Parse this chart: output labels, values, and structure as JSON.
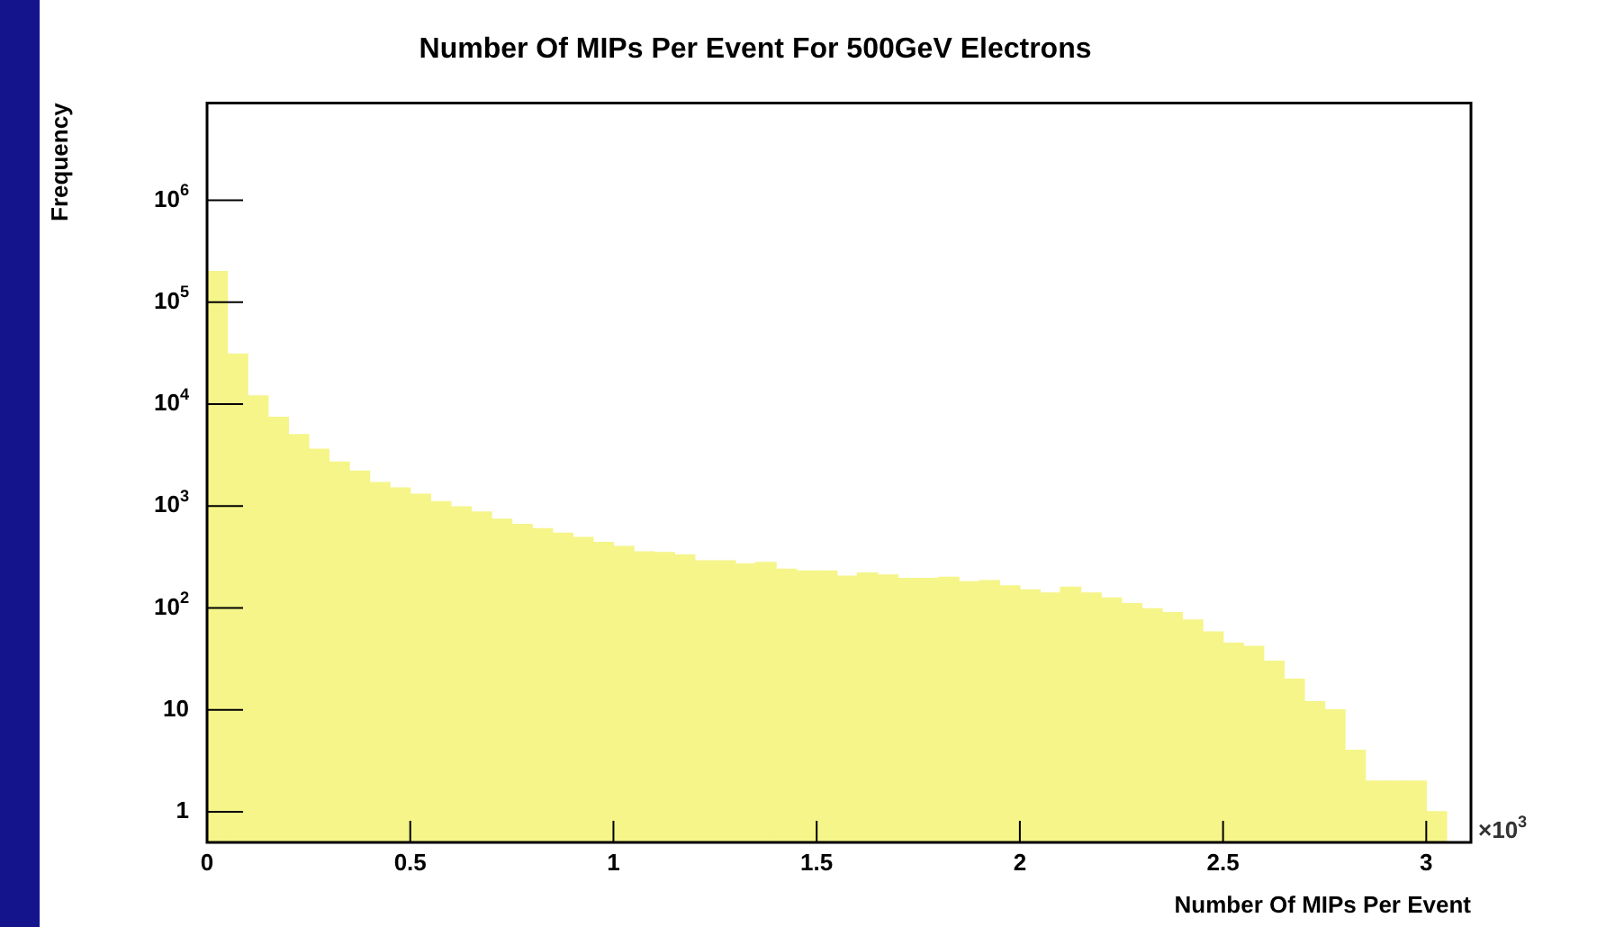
{
  "chart_data": {
    "type": "histogram",
    "title": "Number Of MIPs Per Event For 500GeV Electrons",
    "xlabel": "Number Of MIPs Per Event",
    "ylabel": "Frequency",
    "bins": [
      0,
      0.05,
      0.1,
      0.15,
      0.2,
      0.25,
      0.3,
      0.35,
      0.4,
      0.45,
      0.5,
      0.55,
      0.6,
      0.65,
      0.7,
      0.75,
      0.8,
      0.85,
      0.9,
      0.95,
      1,
      1.05,
      1.1,
      1.15,
      1.2,
      1.25,
      1.3,
      1.35,
      1.4,
      1.45,
      1.5,
      1.55,
      1.6,
      1.65,
      1.7,
      1.75,
      1.8,
      1.85,
      1.9,
      1.95,
      2,
      2.05,
      2.1,
      2.15,
      2.2,
      2.25,
      2.3,
      2.35,
      2.4,
      2.45,
      2.5,
      2.55,
      2.6,
      2.65,
      2.7,
      2.75,
      2.8,
      2.85,
      2.9,
      2.95,
      3,
      3.05
    ],
    "values": [
      200000,
      31000,
      12000,
      7400,
      5000,
      3600,
      2700,
      2200,
      1700,
      1500,
      1300,
      1100,
      980,
      870,
      740,
      660,
      600,
      540,
      490,
      440,
      400,
      355,
      350,
      330,
      290,
      290,
      270,
      280,
      240,
      230,
      230,
      205,
      220,
      210,
      195,
      195,
      200,
      180,
      185,
      165,
      150,
      140,
      160,
      140,
      125,
      110,
      98,
      90,
      76,
      58,
      45,
      42,
      30,
      20,
      12,
      10,
      4,
      2,
      2,
      2,
      1
    ],
    "color": "#f5f58a",
    "log": "y",
    "grid": false,
    "legend": false,
    "xlim": [
      0,
      3.11
    ],
    "ylim": [
      0.5,
      9000000
    ],
    "xticks": [
      0,
      0.5,
      1,
      1.5,
      2,
      2.5,
      3
    ],
    "yticks": [
      1,
      10,
      {
        "value": 100,
        "label": "10$^{2}$"
      },
      {
        "value": 1000,
        "label": "10$^{3}$"
      },
      {
        "value": 10000,
        "label": "10$^{4}$"
      },
      {
        "value": 100000,
        "label": "10$^{5}$"
      },
      {
        "value": 1000000,
        "label": "10$^{6}$"
      }
    ],
    "annotations": [
      "×10$^{3}$"
    ]
  }
}
